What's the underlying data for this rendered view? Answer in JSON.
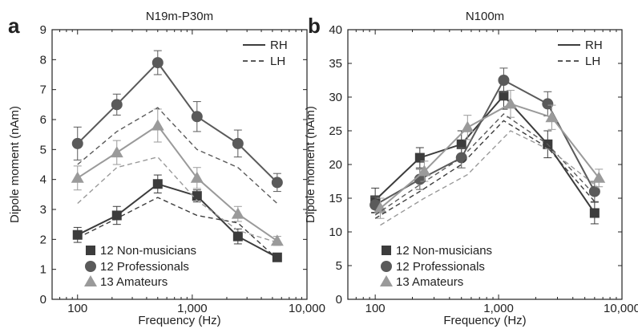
{
  "colors": {
    "non_musicians": "#3c3c3c",
    "professionals": "#5a5a5a",
    "amateurs": "#9a9a9a",
    "axis": "#222222"
  },
  "chart_data": [
    {
      "type": "line",
      "panel_label": "a",
      "title": "N19m-P30m",
      "xlabel": "Frequency (Hz)",
      "ylabel": "Dipole moment (nAm)",
      "xscale": "log",
      "xlim": [
        60,
        10000
      ],
      "ylim": [
        0,
        9
      ],
      "xticks": [
        100,
        1000,
        10000
      ],
      "xtick_labels": [
        "100",
        "1,000",
        "10,000"
      ],
      "yticks": [
        0,
        1,
        2,
        3,
        4,
        5,
        6,
        7,
        8,
        9
      ],
      "ytick_labels": [
        "0",
        "1",
        "2",
        "3",
        "4",
        "5",
        "6",
        "7",
        "8",
        "9"
      ],
      "grid": false,
      "hemisphere_legend": {
        "position": "top-right",
        "entries": [
          "RH",
          "LH"
        ]
      },
      "group_legend": {
        "position": "bottom-left",
        "entries": [
          "12 Non-musicians",
          "12 Professionals",
          "13 Amateurs"
        ]
      },
      "series": [
        {
          "name": "12 Non-musicians",
          "hemisphere": "RH",
          "marker": "square",
          "x": [
            100,
            220,
            500,
            1100,
            2500,
            5500
          ],
          "y": [
            2.15,
            2.8,
            3.85,
            3.45,
            2.1,
            1.4
          ],
          "err": [
            0.25,
            0.3,
            0.3,
            0.2,
            0.25,
            0.12
          ]
        },
        {
          "name": "12 Professionals",
          "hemisphere": "RH",
          "marker": "circle",
          "x": [
            100,
            220,
            500,
            1100,
            2500,
            5500
          ],
          "y": [
            5.2,
            6.5,
            7.9,
            6.1,
            5.2,
            3.9
          ],
          "err": [
            0.55,
            0.35,
            0.4,
            0.5,
            0.45,
            0.3
          ]
        },
        {
          "name": "13 Amateurs",
          "hemisphere": "RH",
          "marker": "triangle",
          "x": [
            100,
            220,
            500,
            1100,
            2500,
            5500
          ],
          "y": [
            4.05,
            4.9,
            5.8,
            4.05,
            2.85,
            1.95
          ],
          "err": [
            0.4,
            0.4,
            0.55,
            0.35,
            0.25,
            0.15
          ]
        },
        {
          "name": "12 Non-musicians",
          "hemisphere": "LH",
          "x": [
            100,
            220,
            500,
            1100,
            2500,
            5500
          ],
          "y": [
            2.05,
            2.7,
            3.4,
            2.8,
            2.55,
            1.35
          ]
        },
        {
          "name": "12 Professionals",
          "hemisphere": "LH",
          "x": [
            100,
            220,
            500,
            1100,
            2500,
            5500
          ],
          "y": [
            4.5,
            5.6,
            6.4,
            5.0,
            4.4,
            3.2
          ]
        },
        {
          "name": "13 Amateurs",
          "hemisphere": "LH",
          "x": [
            100,
            220,
            500,
            1100,
            2500,
            5500
          ],
          "y": [
            3.2,
            4.4,
            4.75,
            3.3,
            2.3,
            1.9
          ]
        }
      ]
    },
    {
      "type": "line",
      "panel_label": "b",
      "title": "N100m",
      "xlabel": "Frequency (Hz)",
      "ylabel": "Dipole moment (nAm)",
      "xscale": "log",
      "xlim": [
        60,
        10000
      ],
      "ylim": [
        0,
        40
      ],
      "xticks": [
        100,
        1000,
        10000
      ],
      "xtick_labels": [
        "100",
        "1,000",
        "10,000"
      ],
      "yticks": [
        0,
        5,
        10,
        15,
        20,
        25,
        30,
        35,
        40
      ],
      "ytick_labels": [
        "0",
        "5",
        "10",
        "15",
        "20",
        "25",
        "30",
        "35",
        "40"
      ],
      "grid": false,
      "hemisphere_legend": {
        "position": "top-right",
        "entries": [
          "RH",
          "LH"
        ]
      },
      "group_legend": {
        "position": "bottom-left",
        "entries": [
          "12 Non-musicians",
          "12 Professionals",
          "13 Amateurs"
        ]
      },
      "series": [
        {
          "name": "12 Non-musicians",
          "hemisphere": "RH",
          "marker": "square",
          "x": [
            100,
            230,
            500,
            1100,
            2500,
            6000
          ],
          "y": [
            14.7,
            21.0,
            23.0,
            30.2,
            23.0,
            12.8
          ],
          "err": [
            1.8,
            1.5,
            2.0,
            2.0,
            2.0,
            1.6
          ]
        },
        {
          "name": "12 Professionals",
          "hemisphere": "RH",
          "marker": "circle",
          "x": [
            100,
            230,
            500,
            1100,
            2500,
            6000
          ],
          "y": [
            14.0,
            17.8,
            21.0,
            32.5,
            29.0,
            16.0
          ],
          "err": [
            1.2,
            1.5,
            1.5,
            1.8,
            1.8,
            1.5
          ]
        },
        {
          "name": "13 Amateurs",
          "hemisphere": "RH",
          "marker": "triangle",
          "x": [
            110,
            250,
            560,
            1250,
            2700,
            6500
          ],
          "y": [
            13.5,
            19.0,
            25.5,
            29.0,
            27.0,
            18.0
          ],
          "err": [
            1.5,
            1.5,
            1.8,
            2.0,
            1.8,
            1.3
          ]
        },
        {
          "name": "12 Non-musicians",
          "hemisphere": "LH",
          "x": [
            100,
            230,
            500,
            1100,
            2500,
            6000
          ],
          "y": [
            12.0,
            16.0,
            20.0,
            26.5,
            22.5,
            14.5
          ]
        },
        {
          "name": "12 Professionals",
          "hemisphere": "LH",
          "x": [
            100,
            230,
            500,
            1100,
            2500,
            6000
          ],
          "y": [
            12.5,
            17.0,
            21.0,
            27.5,
            23.0,
            15.5
          ]
        },
        {
          "name": "13 Amateurs",
          "hemisphere": "LH",
          "x": [
            110,
            250,
            560,
            1250,
            2700,
            6500
          ],
          "y": [
            11.0,
            15.0,
            18.5,
            25.0,
            22.0,
            16.5
          ]
        }
      ]
    }
  ]
}
